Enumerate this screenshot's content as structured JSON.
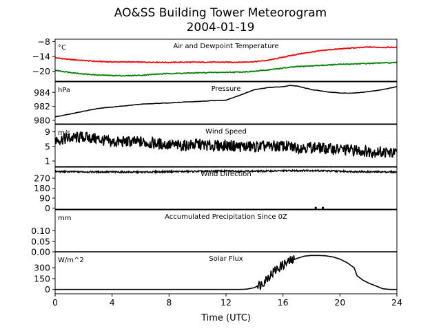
{
  "figure": {
    "title_line1": "AO&SS Building Tower Meteorogram",
    "title_line2": "2004-01-19"
  },
  "chart_data": {
    "type": "line",
    "xlabel": "Time (UTC)",
    "x_ticks": [
      0,
      4,
      8,
      12,
      16,
      20,
      24
    ],
    "xlim": [
      0,
      24
    ],
    "panels": [
      {
        "name": "temperature",
        "unit": "°C",
        "title": "Air and Dewpoint Temperature",
        "ylim": [
          -24,
          -7
        ],
        "y_ticks": [
          -8,
          -14,
          -20
        ],
        "series": [
          {
            "color": "#ff0000",
            "points": [
              [
                0,
                -14.5
              ],
              [
                1,
                -15.2
              ],
              [
                2,
                -15.6
              ],
              [
                3,
                -16.0
              ],
              [
                4,
                -16.2
              ],
              [
                5,
                -16.2
              ],
              [
                6,
                -16.3
              ],
              [
                7,
                -16.3
              ],
              [
                8,
                -16.4
              ],
              [
                9,
                -16.3
              ],
              [
                10,
                -16.3
              ],
              [
                11,
                -16.3
              ],
              [
                12,
                -16.3
              ],
              [
                13,
                -16.3
              ],
              [
                14,
                -16.1
              ],
              [
                15,
                -15.5
              ],
              [
                16,
                -14.3
              ],
              [
                17,
                -13.1
              ],
              [
                18,
                -12.2
              ],
              [
                19,
                -11.4
              ],
              [
                20,
                -10.9
              ],
              [
                21,
                -10.5
              ],
              [
                22,
                -10.2
              ],
              [
                23,
                -10.3
              ],
              [
                24,
                -10.3
              ]
            ]
          },
          {
            "color": "#008000",
            "points": [
              [
                0,
                -19.6
              ],
              [
                1,
                -20.4
              ],
              [
                2,
                -21.1
              ],
              [
                3,
                -21.5
              ],
              [
                4,
                -21.7
              ],
              [
                5,
                -21.8
              ],
              [
                6,
                -21.6
              ],
              [
                7,
                -21.2
              ],
              [
                8,
                -20.9
              ],
              [
                9,
                -20.8
              ],
              [
                10,
                -20.6
              ],
              [
                11,
                -20.5
              ],
              [
                12,
                -20.4
              ],
              [
                13,
                -20.3
              ],
              [
                14,
                -20.0
              ],
              [
                15,
                -19.4
              ],
              [
                16,
                -18.7
              ],
              [
                17,
                -18.1
              ],
              [
                18,
                -17.8
              ],
              [
                19,
                -17.5
              ],
              [
                20,
                -17.2
              ],
              [
                21,
                -17.0
              ],
              [
                22,
                -16.8
              ],
              [
                23,
                -16.6
              ],
              [
                24,
                -16.5
              ]
            ]
          }
        ]
      },
      {
        "name": "pressure",
        "unit": "hPa",
        "title": "Pressure",
        "ylim": [
          979.5,
          985.5
        ],
        "y_ticks": [
          984,
          982,
          980
        ],
        "series": [
          {
            "color": "#000000",
            "points": [
              [
                0,
                980.5
              ],
              [
                1,
                980.9
              ],
              [
                2,
                981.3
              ],
              [
                3,
                981.7
              ],
              [
                4,
                981.9
              ],
              [
                5,
                982.1
              ],
              [
                6,
                982.3
              ],
              [
                7,
                982.4
              ],
              [
                8,
                982.5
              ],
              [
                9,
                982.6
              ],
              [
                10,
                982.7
              ],
              [
                11,
                982.8
              ],
              [
                12,
                982.9
              ],
              [
                13,
                983.6
              ],
              [
                14,
                984.4
              ],
              [
                15,
                984.7
              ],
              [
                16,
                984.8
              ],
              [
                16.5,
                985.0
              ],
              [
                17,
                984.9
              ],
              [
                18,
                984.4
              ],
              [
                19,
                984.1
              ],
              [
                20,
                983.9
              ],
              [
                21,
                983.9
              ],
              [
                22,
                984.1
              ],
              [
                23,
                984.4
              ],
              [
                24,
                984.8
              ]
            ]
          }
        ]
      },
      {
        "name": "wind_speed",
        "unit": "m/s",
        "title": "Wind Speed",
        "ylim": [
          -0.5,
          11
        ],
        "y_ticks": [
          9,
          5,
          1
        ],
        "series": [
          {
            "color": "#000000",
            "points": [
              [
                0,
                6.8
              ],
              [
                1,
                7.2
              ],
              [
                2,
                7.6
              ],
              [
                3,
                7.0
              ],
              [
                4,
                6.1
              ],
              [
                5,
                6.3
              ],
              [
                6,
                6.2
              ],
              [
                7,
                5.8
              ],
              [
                8,
                5.4
              ],
              [
                9,
                5.2
              ],
              [
                10,
                5.6
              ],
              [
                11,
                5.1
              ],
              [
                12,
                5.3
              ],
              [
                13,
                5.0
              ],
              [
                14,
                4.9
              ],
              [
                15,
                5.0
              ],
              [
                16,
                5.1
              ],
              [
                17,
                4.7
              ],
              [
                18,
                4.8
              ],
              [
                19,
                4.4
              ],
              [
                20,
                4.2
              ],
              [
                21,
                4.0
              ],
              [
                22,
                3.6
              ],
              [
                23,
                3.5
              ],
              [
                24,
                3.0
              ]
            ]
          }
        ]
      },
      {
        "name": "wind_direction",
        "unit": "",
        "title": "Wind Direction",
        "ylim": [
          -10,
          370
        ],
        "y_ticks": [
          270,
          180,
          90,
          0
        ],
        "series": [
          {
            "color": "#000000",
            "points": [
              [
                0,
                330
              ],
              [
                2,
                328
              ],
              [
                4,
                327
              ],
              [
                6,
                325
              ],
              [
                8,
                330
              ],
              [
                10,
                332
              ],
              [
                12,
                335
              ],
              [
                14,
                333
              ],
              [
                16,
                337
              ],
              [
                18,
                340
              ],
              [
                20,
                333
              ],
              [
                22,
                328
              ],
              [
                24,
                327
              ]
            ]
          }
        ],
        "dots": [
          [
            18.3,
            2
          ],
          [
            18.8,
            2
          ]
        ]
      },
      {
        "name": "precipitation",
        "unit": "mm",
        "title": "Accumulated Precipitation Since 0Z",
        "ylim": [
          0,
          0.2
        ],
        "y_ticks": [
          0.1,
          0.05,
          0.0
        ],
        "y_tick_labels": [
          "0.10",
          "0.05",
          "0.00"
        ],
        "series": [
          {
            "color": "#000000",
            "points": [
              [
                0,
                0
              ],
              [
                24,
                0
              ]
            ]
          }
        ]
      },
      {
        "name": "solar_flux",
        "unit": "W/m^2",
        "title": "Solar Flux",
        "ylim": [
          -60,
          520
        ],
        "y_ticks": [
          300,
          150,
          0
        ],
        "series": [
          {
            "color": "#000000",
            "points": [
              [
                0,
                0
              ],
              [
                13,
                0
              ],
              [
                13.5,
                5
              ],
              [
                14,
                25
              ],
              [
                14.5,
                80
              ],
              [
                15,
                180
              ],
              [
                15.5,
                270
              ],
              [
                16,
                340
              ],
              [
                16.5,
                390
              ],
              [
                17,
                430
              ],
              [
                17.5,
                460
              ],
              [
                18,
                470
              ],
              [
                18.5,
                470
              ],
              [
                19,
                465
              ],
              [
                19.5,
                450
              ],
              [
                20,
                420
              ],
              [
                20.5,
                370
              ],
              [
                21,
                300
              ],
              [
                21.2,
                190
              ],
              [
                21.6,
                130
              ],
              [
                22,
                90
              ],
              [
                22.5,
                50
              ],
              [
                23,
                10
              ],
              [
                23.5,
                0
              ],
              [
                24,
                0
              ]
            ]
          }
        ]
      }
    ]
  }
}
